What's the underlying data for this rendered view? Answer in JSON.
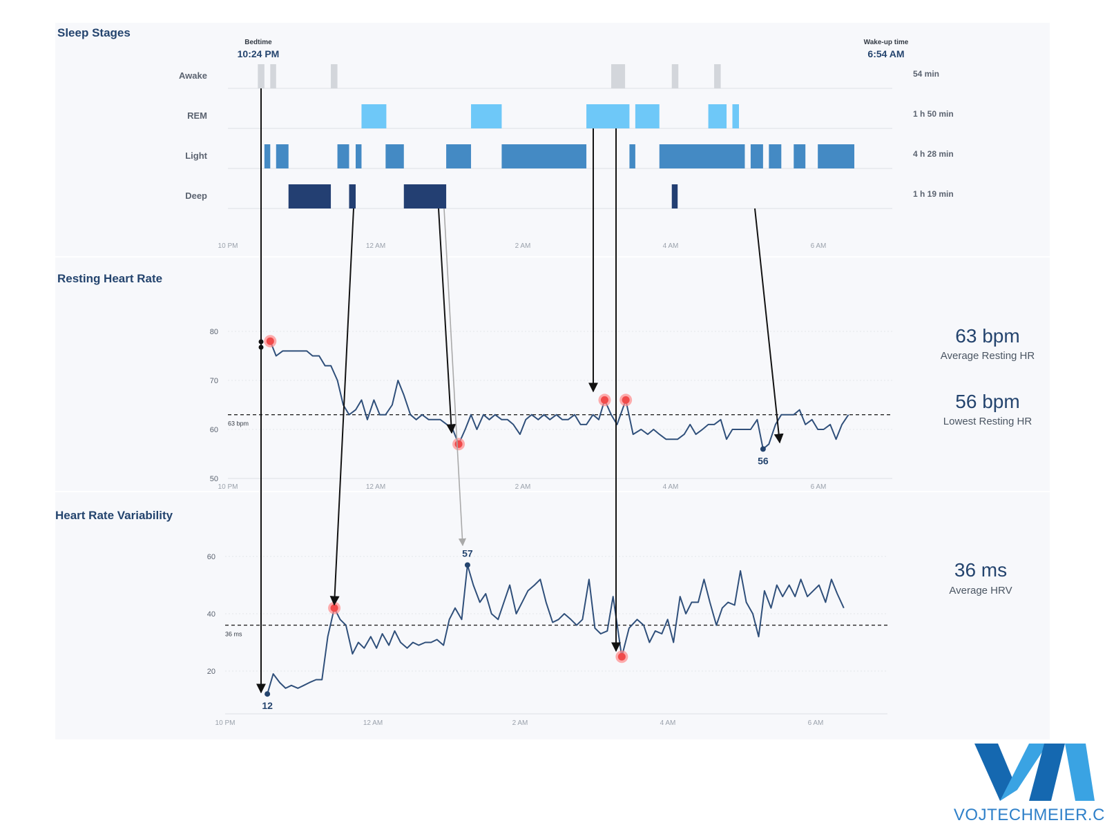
{
  "colors": {
    "awake": "#d3d6db",
    "rem": "#6ec8f8",
    "light": "#448ac4",
    "deep": "#233f72",
    "hr_line": "#2f4f7a",
    "highlight": "#f04a4a",
    "watermark_dark": "#1568b0",
    "watermark_light": "#3aa3e3"
  },
  "watermark": {
    "text": "VOJTECHMEIER.CZ",
    "logo": "VM"
  },
  "chart_data": [
    {
      "type": "timeline",
      "title": "Sleep Stages",
      "x_axis": {
        "ticks": [
          "10 PM",
          "12 AM",
          "2 AM",
          "4 AM",
          "6 AM"
        ],
        "range_hours": [
          22,
          31.1
        ]
      },
      "bedtime": {
        "label": "Bedtime",
        "time": "10:24 PM"
      },
      "wakeup": {
        "label": "Wake-up time",
        "time": "6:54 AM"
      },
      "stages": [
        {
          "name": "Awake",
          "duration": "54 min",
          "color_key": "awake",
          "segments": [
            [
              22.41,
              22.5
            ],
            [
              22.58,
              22.66
            ],
            [
              23.41,
              23.5
            ],
            [
              27.25,
              27.44
            ],
            [
              28.08,
              28.17
            ],
            [
              28.66,
              28.75
            ]
          ]
        },
        {
          "name": "REM",
          "duration": "1 h 50 min",
          "color_key": "rem",
          "segments": [
            [
              23.83,
              24.17
            ],
            [
              25.33,
              25.75
            ],
            [
              26.91,
              27.5
            ],
            [
              27.58,
              27.91
            ],
            [
              28.58,
              28.83
            ],
            [
              28.91,
              29.0
            ]
          ]
        },
        {
          "name": "Light",
          "duration": "4 h 28 min",
          "color_key": "light",
          "segments": [
            [
              22.5,
              22.58
            ],
            [
              22.66,
              22.83
            ],
            [
              23.5,
              23.66
            ],
            [
              23.75,
              23.83
            ],
            [
              24.16,
              24.41
            ],
            [
              24.99,
              25.33
            ],
            [
              25.75,
              26.91
            ],
            [
              27.5,
              27.58
            ],
            [
              27.91,
              29.08
            ],
            [
              29.16,
              29.33
            ],
            [
              29.41,
              29.58
            ],
            [
              29.75,
              29.91
            ],
            [
              30.08,
              30.58
            ]
          ]
        },
        {
          "name": "Deep",
          "duration": "1 h 19 min",
          "color_key": "deep",
          "segments": [
            [
              22.83,
              23.41
            ],
            [
              23.66,
              23.75
            ],
            [
              24.41,
              24.99
            ],
            [
              28.08,
              28.16
            ]
          ]
        }
      ]
    },
    {
      "type": "line",
      "title": "Resting Heart Rate",
      "x_axis": {
        "ticks": [
          "10 PM",
          "12 AM",
          "2 AM",
          "4 AM",
          "6 AM"
        ],
        "range_hours": [
          22,
          31.1
        ]
      },
      "y_ticks": [
        50,
        60,
        70,
        80
      ],
      "ylim": [
        50,
        80
      ],
      "reference": {
        "value": 63,
        "label": "63 bpm"
      },
      "stats": [
        {
          "value": "63 bpm",
          "label": "Average Resting HR"
        },
        {
          "value": "56 bpm",
          "label": "Lowest Resting HR"
        }
      ],
      "min_point": {
        "x": 29.33,
        "y": 56,
        "label": "56"
      },
      "highlights": [
        {
          "x": 22.58,
          "y": 78
        },
        {
          "x": 25.16,
          "y": 57
        },
        {
          "x": 27.16,
          "y": 66
        },
        {
          "x": 27.45,
          "y": 66
        }
      ],
      "series": [
        {
          "points": [
            [
              22.58,
              78
            ],
            [
              22.66,
              75
            ],
            [
              22.75,
              76
            ],
            [
              22.83,
              76
            ],
            [
              23.0,
              76
            ],
            [
              23.08,
              76
            ],
            [
              23.16,
              75
            ],
            [
              23.25,
              75
            ],
            [
              23.33,
              73
            ],
            [
              23.41,
              73
            ],
            [
              23.5,
              70
            ],
            [
              23.58,
              65
            ],
            [
              23.66,
              63
            ],
            [
              23.75,
              64
            ],
            [
              23.83,
              66
            ],
            [
              23.91,
              62
            ],
            [
              24.0,
              66
            ],
            [
              24.08,
              63
            ],
            [
              24.16,
              63
            ],
            [
              24.25,
              65
            ],
            [
              24.33,
              70
            ],
            [
              24.41,
              67
            ],
            [
              24.5,
              63
            ],
            [
              24.58,
              62
            ],
            [
              24.66,
              63
            ],
            [
              24.75,
              62
            ],
            [
              24.83,
              62
            ],
            [
              24.91,
              62
            ],
            [
              25.0,
              61
            ],
            [
              25.08,
              60
            ],
            [
              25.16,
              57
            ],
            [
              25.25,
              60
            ],
            [
              25.33,
              63
            ],
            [
              25.41,
              60
            ],
            [
              25.5,
              63
            ],
            [
              25.58,
              62
            ],
            [
              25.66,
              63
            ],
            [
              25.75,
              62
            ],
            [
              25.83,
              62
            ],
            [
              25.91,
              61
            ],
            [
              26.0,
              59
            ],
            [
              26.08,
              62
            ],
            [
              26.16,
              63
            ],
            [
              26.25,
              62
            ],
            [
              26.33,
              63
            ],
            [
              26.41,
              62
            ],
            [
              26.5,
              63
            ],
            [
              26.58,
              62
            ],
            [
              26.66,
              62
            ],
            [
              26.75,
              63
            ],
            [
              26.83,
              61
            ],
            [
              26.91,
              61
            ],
            [
              27.0,
              63
            ],
            [
              27.08,
              62
            ],
            [
              27.16,
              66
            ],
            [
              27.25,
              63
            ],
            [
              27.33,
              61
            ],
            [
              27.45,
              66
            ],
            [
              27.55,
              59
            ],
            [
              27.66,
              60
            ],
            [
              27.75,
              59
            ],
            [
              27.83,
              60
            ],
            [
              27.91,
              59
            ],
            [
              28.0,
              58
            ],
            [
              28.16,
              58
            ],
            [
              28.25,
              59
            ],
            [
              28.33,
              61
            ],
            [
              28.41,
              59
            ],
            [
              28.5,
              60
            ],
            [
              28.58,
              61
            ],
            [
              28.66,
              61
            ],
            [
              28.75,
              62
            ],
            [
              28.83,
              58
            ],
            [
              28.91,
              60
            ],
            [
              29.0,
              60
            ],
            [
              29.08,
              60
            ],
            [
              29.16,
              60
            ],
            [
              29.25,
              62
            ],
            [
              29.33,
              56
            ],
            [
              29.41,
              57
            ],
            [
              29.5,
              61
            ],
            [
              29.58,
              63
            ],
            [
              29.66,
              63
            ],
            [
              29.75,
              63
            ],
            [
              29.83,
              64
            ],
            [
              29.91,
              61
            ],
            [
              30.0,
              62
            ],
            [
              30.08,
              60
            ],
            [
              30.16,
              60
            ],
            [
              30.25,
              61
            ],
            [
              30.33,
              58
            ],
            [
              30.41,
              61
            ],
            [
              30.5,
              63
            ]
          ]
        }
      ]
    },
    {
      "type": "line",
      "title": "Heart Rate Variability",
      "x_axis": {
        "ticks": [
          "10 PM",
          "12 AM",
          "2 AM",
          "4 AM",
          "6 AM"
        ],
        "range_hours": [
          22,
          31.1
        ]
      },
      "y_ticks": [
        20,
        40,
        60
      ],
      "ylim": [
        5,
        75
      ],
      "reference": {
        "value": 36,
        "label": "36 ms"
      },
      "stats": [
        {
          "value": "36 ms",
          "label": "Average HRV"
        }
      ],
      "min_point": {
        "x": 22.58,
        "y": 12,
        "label": "12"
      },
      "max_point": {
        "x": 25.33,
        "y": 57,
        "label": "57"
      },
      "highlights": [
        {
          "x": 23.5,
          "y": 42
        },
        {
          "x": 27.45,
          "y": 25
        }
      ],
      "series": [
        {
          "points": [
            [
              22.58,
              12
            ],
            [
              22.66,
              19
            ],
            [
              22.75,
              16
            ],
            [
              22.83,
              14
            ],
            [
              22.91,
              15
            ],
            [
              23.0,
              14
            ],
            [
              23.08,
              15
            ],
            [
              23.16,
              16
            ],
            [
              23.25,
              17
            ],
            [
              23.33,
              17
            ],
            [
              23.41,
              32
            ],
            [
              23.5,
              42
            ],
            [
              23.58,
              38
            ],
            [
              23.66,
              36
            ],
            [
              23.75,
              26
            ],
            [
              23.83,
              30
            ],
            [
              23.91,
              28
            ],
            [
              24.0,
              32
            ],
            [
              24.08,
              28
            ],
            [
              24.16,
              33
            ],
            [
              24.25,
              29
            ],
            [
              24.33,
              34
            ],
            [
              24.41,
              30
            ],
            [
              24.5,
              28
            ],
            [
              24.58,
              30
            ],
            [
              24.66,
              29
            ],
            [
              24.75,
              30
            ],
            [
              24.83,
              30
            ],
            [
              24.91,
              31
            ],
            [
              25.0,
              29
            ],
            [
              25.08,
              38
            ],
            [
              25.16,
              42
            ],
            [
              25.25,
              38
            ],
            [
              25.33,
              57
            ],
            [
              25.41,
              50
            ],
            [
              25.5,
              44
            ],
            [
              25.58,
              47
            ],
            [
              25.66,
              40
            ],
            [
              25.75,
              38
            ],
            [
              25.83,
              44
            ],
            [
              25.91,
              50
            ],
            [
              26.0,
              40
            ],
            [
              26.08,
              44
            ],
            [
              26.16,
              48
            ],
            [
              26.25,
              50
            ],
            [
              26.33,
              52
            ],
            [
              26.41,
              44
            ],
            [
              26.5,
              37
            ],
            [
              26.58,
              38
            ],
            [
              26.66,
              40
            ],
            [
              26.75,
              38
            ],
            [
              26.83,
              36
            ],
            [
              26.91,
              38
            ],
            [
              27.0,
              52
            ],
            [
              27.08,
              35
            ],
            [
              27.16,
              33
            ],
            [
              27.25,
              34
            ],
            [
              27.33,
              46
            ],
            [
              27.45,
              25
            ],
            [
              27.55,
              35
            ],
            [
              27.66,
              38
            ],
            [
              27.75,
              36
            ],
            [
              27.83,
              30
            ],
            [
              27.91,
              34
            ],
            [
              28.0,
              33
            ],
            [
              28.08,
              38
            ],
            [
              28.16,
              30
            ],
            [
              28.25,
              46
            ],
            [
              28.33,
              40
            ],
            [
              28.41,
              44
            ],
            [
              28.5,
              44
            ],
            [
              28.58,
              52
            ],
            [
              28.66,
              44
            ],
            [
              28.75,
              36
            ],
            [
              28.83,
              42
            ],
            [
              28.91,
              44
            ],
            [
              29.0,
              43
            ],
            [
              29.08,
              55
            ],
            [
              29.16,
              44
            ],
            [
              29.25,
              40
            ],
            [
              29.33,
              32
            ],
            [
              29.41,
              48
            ],
            [
              29.5,
              42
            ],
            [
              29.58,
              50
            ],
            [
              29.66,
              46
            ],
            [
              29.75,
              50
            ],
            [
              29.83,
              46
            ],
            [
              29.91,
              52
            ],
            [
              30.0,
              46
            ],
            [
              30.08,
              48
            ],
            [
              30.16,
              50
            ],
            [
              30.25,
              44
            ],
            [
              30.33,
              52
            ],
            [
              30.41,
              47
            ],
            [
              30.5,
              42
            ]
          ]
        }
      ]
    }
  ]
}
